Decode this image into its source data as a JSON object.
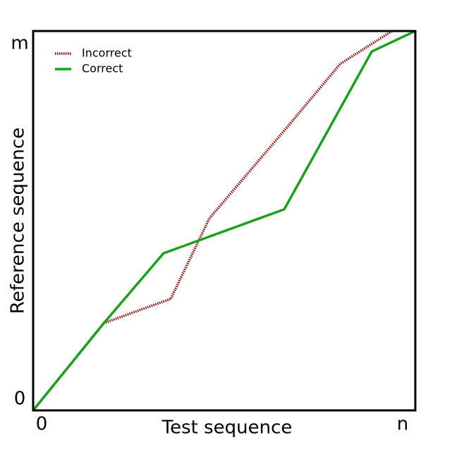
{
  "chart_data": {
    "type": "line",
    "x_label": "Test sequence",
    "y_label": "Reference sequence",
    "xlim": [
      0,
      100
    ],
    "ylim": [
      0,
      100
    ],
    "xticks": [
      0,
      {
        "value": 100,
        "label": "n"
      }
    ],
    "yticks": [
      0,
      {
        "value": 100,
        "label": "m"
      }
    ],
    "legend": "upper-left",
    "series": [
      {
        "name": "Incorrect",
        "color": "#8b0000",
        "style": "dotted",
        "x": [
          0,
          18.5,
          36.0,
          46.1,
          66.1,
          80.3,
          93.9
        ],
        "values": [
          0,
          23.0,
          29.4,
          50.6,
          74.2,
          91.3,
          100
        ]
      },
      {
        "name": "Correct",
        "color": "#1aa01a",
        "style": "solid",
        "x": [
          0,
          18.5,
          34.1,
          65.7,
          88.6,
          100
        ],
        "values": [
          0,
          23.0,
          41.4,
          53.0,
          94.6,
          100
        ]
      }
    ]
  }
}
